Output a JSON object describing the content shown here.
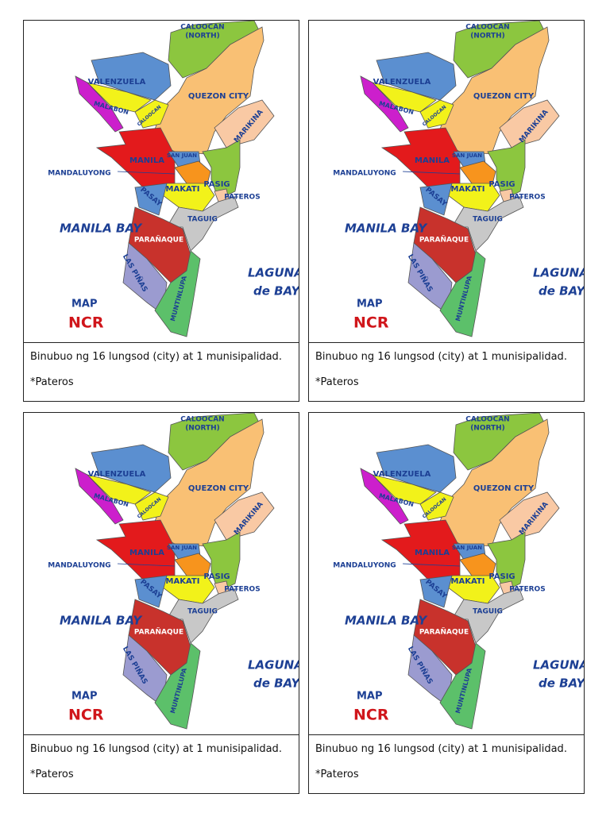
{
  "cards": [
    {
      "labels": [
        "CALOOCAN",
        "(NORTH)",
        "VALENZUELA",
        "QUEZON CITY",
        "MALABON",
        "CALOOCAN",
        "MARIKINA",
        "MANILA",
        "SAN JUAN",
        "MANDALUYONG",
        "PASIG",
        "MAKATI",
        "PATEROS",
        "PASAY",
        "TAGUIG",
        "PARAÑAQUE",
        "LAS PIÑAS",
        "MUNTINLUPA",
        "MANILA BAY",
        "LAGUNA",
        "de BAY",
        "MAP",
        "NCR"
      ],
      "caption": "Binubuo ng 16 lungsod (city) at 1 munisipalidad.",
      "note": "*Pateros"
    },
    {
      "labels": [
        "CALOOCAN",
        "(NORTH)",
        "VALENZUELA",
        "QUEZON CITY",
        "MALABON",
        "CALOOCAN",
        "MARIKINA",
        "MANILA",
        "SAN JUAN",
        "MANDALUYONG",
        "PASIG",
        "MAKATI",
        "PATEROS",
        "PASAY",
        "TAGUIG",
        "PARAÑAQUE",
        "LAS PIÑAS",
        "MUNTINLUPA",
        "MANILA BAY",
        "LAGUNA",
        "de BAY",
        "MAP",
        "NCR"
      ],
      "caption": "Binubuo ng 16 lungsod (city) at 1 munisipalidad.",
      "note": "*Pateros"
    },
    {
      "labels": [
        "CALOOCAN",
        "(NORTH)",
        "VALENZUELA",
        "QUEZON CITY",
        "MALABON",
        "CALOOCAN",
        "MARIKINA",
        "MANILA",
        "SAN JUAN",
        "MANDALUYONG",
        "PASIG",
        "MAKATI",
        "PATEROS",
        "PASAY",
        "TAGUIG",
        "PARAÑAQUE",
        "LAS PIÑAS",
        "MUNTINLUPA",
        "MANILA BAY",
        "LAGUNA",
        "de BAY",
        "MAP",
        "NCR"
      ],
      "caption": "Binubuo ng 16 lungsod (city) at 1 munisipalidad.",
      "note": "*Pateros"
    },
    {
      "labels": [
        "CALOOCAN",
        "(NORTH)",
        "VALENZUELA",
        "QUEZON CITY",
        "MALABON",
        "CALOOCAN",
        "MARIKINA",
        "MANILA",
        "SAN JUAN",
        "MANDALUYONG",
        "PASIG",
        "MAKATI",
        "PATEROS",
        "PASAY",
        "TAGUIG",
        "PARAÑAQUE",
        "LAS PIÑAS",
        "MUNTINLUPA",
        "MANILA BAY",
        "LAGUNA",
        "de BAY",
        "MAP",
        "NCR"
      ],
      "caption": "Binubuo ng 16 lungsod (city) at 1 munisipalidad.",
      "note": "*Pateros"
    }
  ]
}
